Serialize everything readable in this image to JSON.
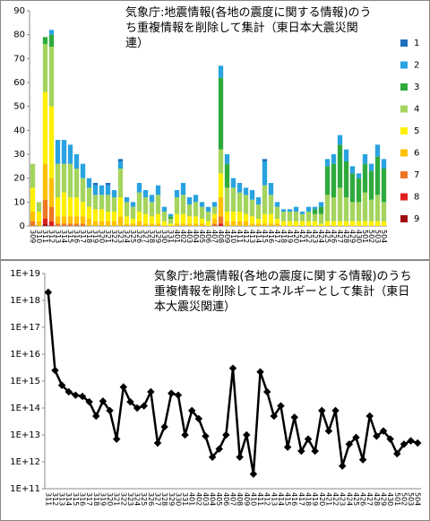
{
  "chart_data": [
    {
      "type": "bar",
      "stacked": true,
      "title": "気象庁:地震情報(各地の震度に関する情報)のうち重複情報を削除して集計（東日本大震災関連）",
      "categories": [
        "309",
        "310",
        "311",
        "312",
        "313",
        "314",
        "315",
        "316",
        "317",
        "318",
        "319",
        "320",
        "321",
        "322",
        "323",
        "324",
        "325",
        "326",
        "327",
        "328",
        "329",
        "330",
        "331",
        "401",
        "402",
        "403",
        "404",
        "405",
        "406",
        "407",
        "408",
        "409",
        "410",
        "411",
        "412",
        "413",
        "414",
        "415",
        "416",
        "417",
        "418",
        "419",
        "420",
        "421",
        "422",
        "423",
        "424",
        "425",
        "426",
        "427",
        "428",
        "429",
        "430",
        "501",
        "502",
        "503",
        "504"
      ],
      "series": [
        {
          "name": "1",
          "color": "#1f6fbf",
          "values": [
            0,
            0,
            0,
            0,
            0,
            0,
            0,
            0,
            0,
            0,
            1,
            0,
            1,
            0,
            1,
            0,
            0,
            0,
            0,
            0,
            0,
            0,
            0,
            0,
            0,
            0,
            0,
            0,
            0,
            0,
            0,
            0,
            0,
            0,
            0,
            0,
            0,
            1,
            0,
            0,
            0,
            0,
            0,
            0,
            0,
            0,
            0,
            0,
            0,
            0,
            0,
            0,
            0,
            0,
            0,
            0,
            0
          ]
        },
        {
          "name": "2",
          "color": "#29a3e0",
          "values": [
            0,
            0,
            0,
            2,
            10,
            10,
            8,
            6,
            6,
            4,
            4,
            4,
            4,
            3,
            3,
            2,
            2,
            4,
            3,
            3,
            4,
            2,
            1,
            3,
            5,
            3,
            3,
            2,
            2,
            2,
            5,
            4,
            4,
            4,
            3,
            4,
            3,
            10,
            5,
            2,
            1,
            1,
            2,
            1,
            2,
            1,
            2,
            3,
            4,
            4,
            5,
            3,
            2,
            4,
            3,
            5,
            4
          ]
        },
        {
          "name": "3",
          "color": "#2eaa3c",
          "values": [
            0,
            0,
            3,
            5,
            0,
            0,
            0,
            0,
            0,
            0,
            0,
            0,
            0,
            0,
            0,
            0,
            0,
            0,
            0,
            0,
            0,
            0,
            1,
            0,
            0,
            0,
            0,
            0,
            0,
            0,
            30,
            10,
            0,
            0,
            0,
            0,
            0,
            0,
            0,
            0,
            0,
            0,
            0,
            0,
            0,
            2,
            3,
            12,
            14,
            18,
            15,
            12,
            10,
            12,
            12,
            16,
            14
          ]
        },
        {
          "name": "4",
          "color": "#a4d45e",
          "values": [
            10,
            4,
            20,
            25,
            14,
            12,
            14,
            12,
            10,
            8,
            6,
            6,
            7,
            6,
            12,
            6,
            5,
            8,
            7,
            6,
            8,
            4,
            2,
            7,
            8,
            5,
            6,
            5,
            4,
            3,
            10,
            10,
            10,
            8,
            8,
            7,
            6,
            12,
            8,
            5,
            4,
            4,
            4,
            3,
            4,
            3,
            4,
            11,
            10,
            14,
            10,
            8,
            8,
            12,
            9,
            11,
            8
          ]
        },
        {
          "name": "5",
          "color": "#fff000",
          "values": [
            10,
            4,
            30,
            30,
            8,
            10,
            8,
            8,
            6,
            5,
            5,
            5,
            4,
            4,
            8,
            3,
            2,
            4,
            4,
            3,
            4,
            2,
            1,
            4,
            4,
            3,
            3,
            2,
            2,
            2,
            10,
            4,
            4,
            4,
            3,
            3,
            2,
            4,
            4,
            2,
            2,
            2,
            2,
            2,
            2,
            2,
            1,
            2,
            2,
            2,
            2,
            2,
            2,
            2,
            2,
            2,
            2
          ]
        },
        {
          "name": "6",
          "color": "#ffc000",
          "values": [
            4,
            2,
            15,
            12,
            3,
            3,
            3,
            3,
            3,
            3,
            2,
            2,
            2,
            2,
            4,
            1,
            1,
            2,
            1,
            1,
            1,
            0,
            0,
            1,
            1,
            1,
            1,
            1,
            0,
            2,
            8,
            2,
            2,
            2,
            2,
            1,
            1,
            1,
            1,
            1,
            0,
            0,
            0,
            0,
            0,
            0,
            0,
            0,
            0,
            0,
            0,
            0,
            0,
            0,
            0,
            0,
            0
          ]
        },
        {
          "name": "7",
          "color": "#ee7722",
          "values": [
            2,
            0,
            8,
            6,
            1,
            1,
            1,
            1,
            1,
            0,
            0,
            0,
            0,
            0,
            0,
            0,
            0,
            0,
            0,
            0,
            0,
            0,
            0,
            0,
            0,
            0,
            0,
            0,
            0,
            1,
            3,
            0,
            0,
            0,
            0,
            0,
            0,
            0,
            0,
            0,
            0,
            0,
            0,
            0,
            0,
            0,
            0,
            0,
            0,
            0,
            0,
            0,
            0,
            0,
            0,
            0,
            0
          ]
        },
        {
          "name": "8",
          "color": "#e02020",
          "values": [
            0,
            0,
            2,
            2,
            0,
            0,
            0,
            0,
            0,
            0,
            0,
            0,
            0,
            0,
            0,
            0,
            0,
            0,
            0,
            0,
            0,
            0,
            0,
            0,
            0,
            0,
            0,
            0,
            0,
            0,
            1,
            0,
            0,
            0,
            0,
            0,
            0,
            0,
            0,
            0,
            0,
            0,
            0,
            0,
            0,
            0,
            0,
            0,
            0,
            0,
            0,
            0,
            0,
            0,
            0,
            0,
            0
          ]
        },
        {
          "name": "9",
          "color": "#a01010",
          "values": [
            0,
            0,
            1,
            0,
            0,
            0,
            0,
            0,
            0,
            0,
            0,
            0,
            0,
            0,
            0,
            0,
            0,
            0,
            0,
            0,
            0,
            0,
            0,
            0,
            0,
            0,
            0,
            0,
            0,
            0,
            0,
            0,
            0,
            0,
            0,
            0,
            0,
            0,
            0,
            0,
            0,
            0,
            0,
            0,
            0,
            0,
            0,
            0,
            0,
            0,
            0,
            0,
            0,
            0,
            0,
            0,
            0
          ]
        }
      ],
      "ylim": [
        0,
        90
      ],
      "yticks": [
        0,
        10,
        20,
        30,
        40,
        50,
        60,
        70,
        80,
        90
      ],
      "grid": false,
      "legend": "right"
    },
    {
      "type": "line",
      "title": "気象庁:地震情報(各地の震度に関する情報)のうち重複情報を削除してエネルギーとして集計（東日本大震災関連）",
      "categories": [
        "311",
        "312",
        "313",
        "314",
        "315",
        "316",
        "317",
        "318",
        "319",
        "320",
        "321",
        "322",
        "323",
        "324",
        "325",
        "326",
        "327",
        "328",
        "329",
        "330",
        "331",
        "401",
        "402",
        "403",
        "404",
        "405",
        "406",
        "407",
        "408",
        "409",
        "410",
        "411",
        "412",
        "413",
        "414",
        "415",
        "416",
        "417",
        "418",
        "419",
        "420",
        "421",
        "422",
        "423",
        "424",
        "425",
        "426",
        "427",
        "428",
        "429",
        "430",
        "501",
        "502",
        "503",
        "504"
      ],
      "values": [
        2e+18,
        2500000000000000.0,
        700000000000000.0,
        400000000000000.0,
        300000000000000.0,
        270000000000000.0,
        170000000000000.0,
        50000000000000.0,
        180000000000000.0,
        80000000000000.0,
        7000000000000.0,
        600000000000000.0,
        170000000000000.0,
        100000000000000.0,
        120000000000000.0,
        400000000000000.0,
        5000000000000.0,
        20000000000000.0,
        350000000000000.0,
        300000000000000.0,
        10000000000000.0,
        80000000000000.0,
        40000000000000.0,
        9000000000000.0,
        1500000000000.0,
        3000000000000.0,
        10000000000000.0,
        3000000000000000.0,
        1500000000000.0,
        10000000000000.0,
        350000000000.0,
        2200000000000000.0,
        400000000000000.0,
        50000000000000.0,
        120000000000000.0,
        3500000000000.0,
        45000000000000.0,
        2500000000000.0,
        7000000000000.0,
        2500000000000.0,
        80000000000000.0,
        14000000000000.0,
        80000000000000.0,
        700000000000.0,
        4500000000000.0,
        8000000000000.0,
        1200000000000.0,
        50000000000000.0,
        9000000000000.0,
        14000000000000.0,
        7000000000000.0,
        2000000000000.0,
        4500000000000.0,
        6000000000000.0,
        5000000000000.0
      ],
      "color": "#000000",
      "log": true,
      "grid": false,
      "ylim": [
        100000000000.0,
        1e+19
      ],
      "yticks": [
        {
          "value": 100000000000.0,
          "label": "1E+11"
        },
        {
          "value": 1000000000000.0,
          "label": "1E+12"
        },
        {
          "value": 10000000000000.0,
          "label": "1E+13"
        },
        {
          "value": 100000000000000.0,
          "label": "1E+14"
        },
        {
          "value": 1000000000000000.0,
          "label": "1E+15"
        },
        {
          "value": 1e+16,
          "label": "1E+16"
        },
        {
          "value": 1e+17,
          "label": "1E+17"
        },
        {
          "value": 1e+18,
          "label": "1E+18"
        },
        {
          "value": 1e+19,
          "label": "1E+19"
        }
      ]
    }
  ]
}
